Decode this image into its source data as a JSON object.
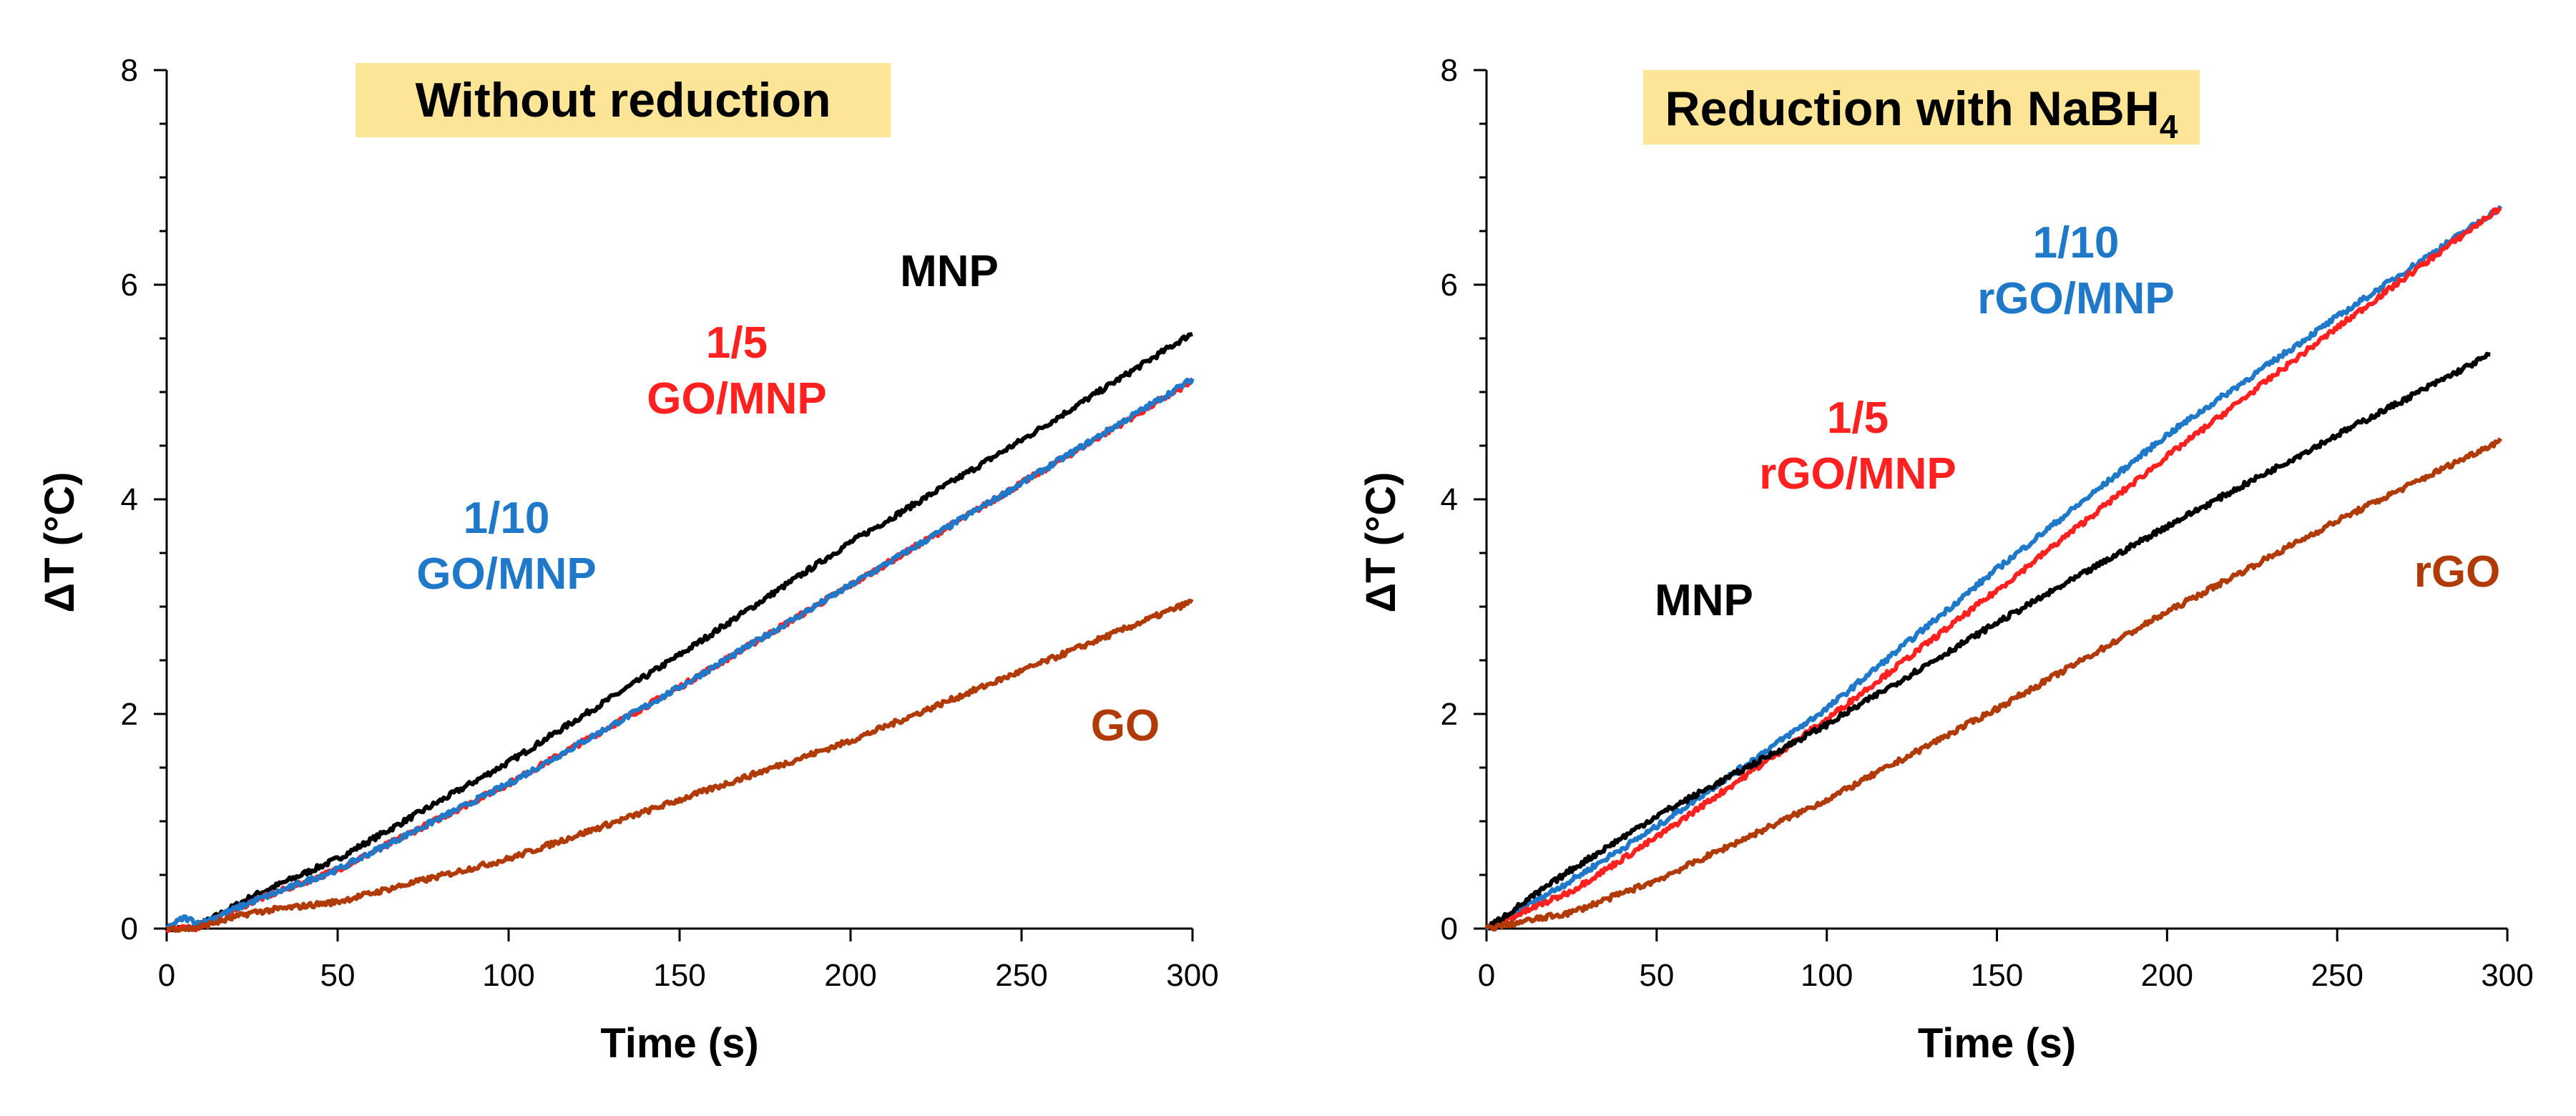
{
  "chart_data": [
    {
      "type": "line",
      "title": "Without reduction",
      "xlabel": "Time (s)",
      "ylabel": "ΔT (°C)",
      "xlim": [
        0,
        300
      ],
      "ylim": [
        0,
        8
      ],
      "xticks": [
        "0",
        "50",
        "100",
        "150",
        "200",
        "250",
        "300"
      ],
      "yticks": [
        "0",
        "2",
        "4",
        "6",
        "8"
      ],
      "title_bg": "#fde598",
      "series": [
        {
          "name": "MNP",
          "label_lines": [
            "MNP"
          ],
          "color": "#000000",
          "x": [
            0,
            8,
            25,
            50,
            100,
            150,
            200,
            250,
            300
          ],
          "y": [
            0,
            0,
            0.3,
            0.65,
            1.55,
            2.55,
            3.6,
            4.55,
            5.55
          ]
        },
        {
          "name": "1/5 GO/MNP",
          "label_lines": [
            "1/5",
            "GO/MNP"
          ],
          "color": "#ff2020",
          "x": [
            0,
            8,
            25,
            50,
            100,
            150,
            200,
            250,
            300
          ],
          "y": [
            0,
            0,
            0.25,
            0.55,
            1.35,
            2.25,
            3.2,
            4.15,
            5.1
          ]
        },
        {
          "name": "1/10 GO/MNP",
          "label_lines": [
            "1/10",
            "GO/MNP"
          ],
          "color": "#1f78c8",
          "x": [
            0,
            5,
            10,
            25,
            50,
            100,
            150,
            200,
            250,
            300
          ],
          "y": [
            0,
            0.1,
            0.05,
            0.25,
            0.55,
            1.35,
            2.25,
            3.2,
            4.15,
            5.12
          ]
        },
        {
          "name": "GO",
          "label_lines": [
            "GO"
          ],
          "color": "#b03a08",
          "x": [
            0,
            8,
            25,
            50,
            100,
            150,
            200,
            250,
            300
          ],
          "y": [
            0,
            0,
            0.15,
            0.25,
            0.65,
            1.2,
            1.75,
            2.4,
            3.05
          ]
        }
      ]
    },
    {
      "type": "line",
      "title": "Reduction with NaBH",
      "title_subscript": "4",
      "xlabel": "Time (s)",
      "ylabel": "ΔT (°C)",
      "xlim": [
        0,
        300
      ],
      "ylim": [
        0,
        8
      ],
      "xticks": [
        "0",
        "50",
        "100",
        "150",
        "200",
        "250",
        "300"
      ],
      "yticks": [
        "0",
        "2",
        "4",
        "6",
        "8"
      ],
      "title_bg": "#fde598",
      "series": [
        {
          "name": "1/10 rGO/MNP",
          "label_lines": [
            "1/10",
            "rGO/MNP"
          ],
          "color": "#1f78c8",
          "x": [
            0,
            25,
            50,
            100,
            150,
            200,
            250,
            298
          ],
          "y": [
            0,
            0.45,
            0.95,
            2.05,
            3.35,
            4.6,
            5.7,
            6.72
          ]
        },
        {
          "name": "1/5 rGO/MNP",
          "label_lines": [
            "1/5",
            "rGO/MNP"
          ],
          "color": "#ff2020",
          "x": [
            0,
            25,
            50,
            100,
            150,
            200,
            250,
            298
          ],
          "y": [
            0,
            0.35,
            0.85,
            1.95,
            3.15,
            4.4,
            5.6,
            6.72
          ]
        },
        {
          "name": "MNP",
          "label_lines": [
            "MNP"
          ],
          "color": "#000000",
          "x": [
            0,
            25,
            50,
            100,
            150,
            200,
            250,
            295
          ],
          "y": [
            0,
            0.55,
            1.05,
            1.9,
            2.85,
            3.75,
            4.6,
            5.35
          ]
        },
        {
          "name": "rGO",
          "label_lines": [
            "rGO"
          ],
          "color": "#b03a08",
          "x": [
            0,
            25,
            50,
            100,
            150,
            200,
            250,
            298
          ],
          "y": [
            0,
            0.15,
            0.45,
            1.2,
            2.05,
            2.95,
            3.8,
            4.55
          ]
        }
      ]
    }
  ]
}
